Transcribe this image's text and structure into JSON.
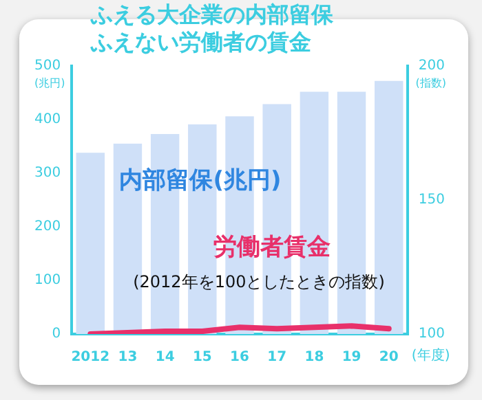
{
  "chart_data": {
    "type": "bar",
    "title": "ふえる大企業の内部留保",
    "subtitle": "ふえない労働者の賃金",
    "xlabel": "(年度)",
    "ylabel": "(兆円)",
    "y2label": "(指数)",
    "categories": [
      "2012",
      "13",
      "14",
      "15",
      "16",
      "17",
      "18",
      "19",
      "20"
    ],
    "series": [
      {
        "name": "内部留保(兆円)",
        "color": "#cfe0f8",
        "values": [
          338,
          355,
          373,
          391,
          406,
          429,
          452,
          452,
          472
        ]
      },
      {
        "name": "労働者賃金",
        "type": "line",
        "axis": "y2",
        "color": "#e8306a",
        "values": [
          100,
          100.5,
          101,
          101,
          102.5,
          102,
          102.5,
          103,
          102
        ]
      }
    ],
    "annotations": [
      "(2012年を100としたときの指数)"
    ],
    "ylim": [
      0,
      500
    ],
    "yticks": [
      0,
      100,
      200,
      300,
      400,
      500
    ],
    "y2lim": [
      100,
      200
    ],
    "y2ticks": [
      100,
      150,
      200
    ],
    "grid": false,
    "legend": false,
    "marker": "none"
  }
}
